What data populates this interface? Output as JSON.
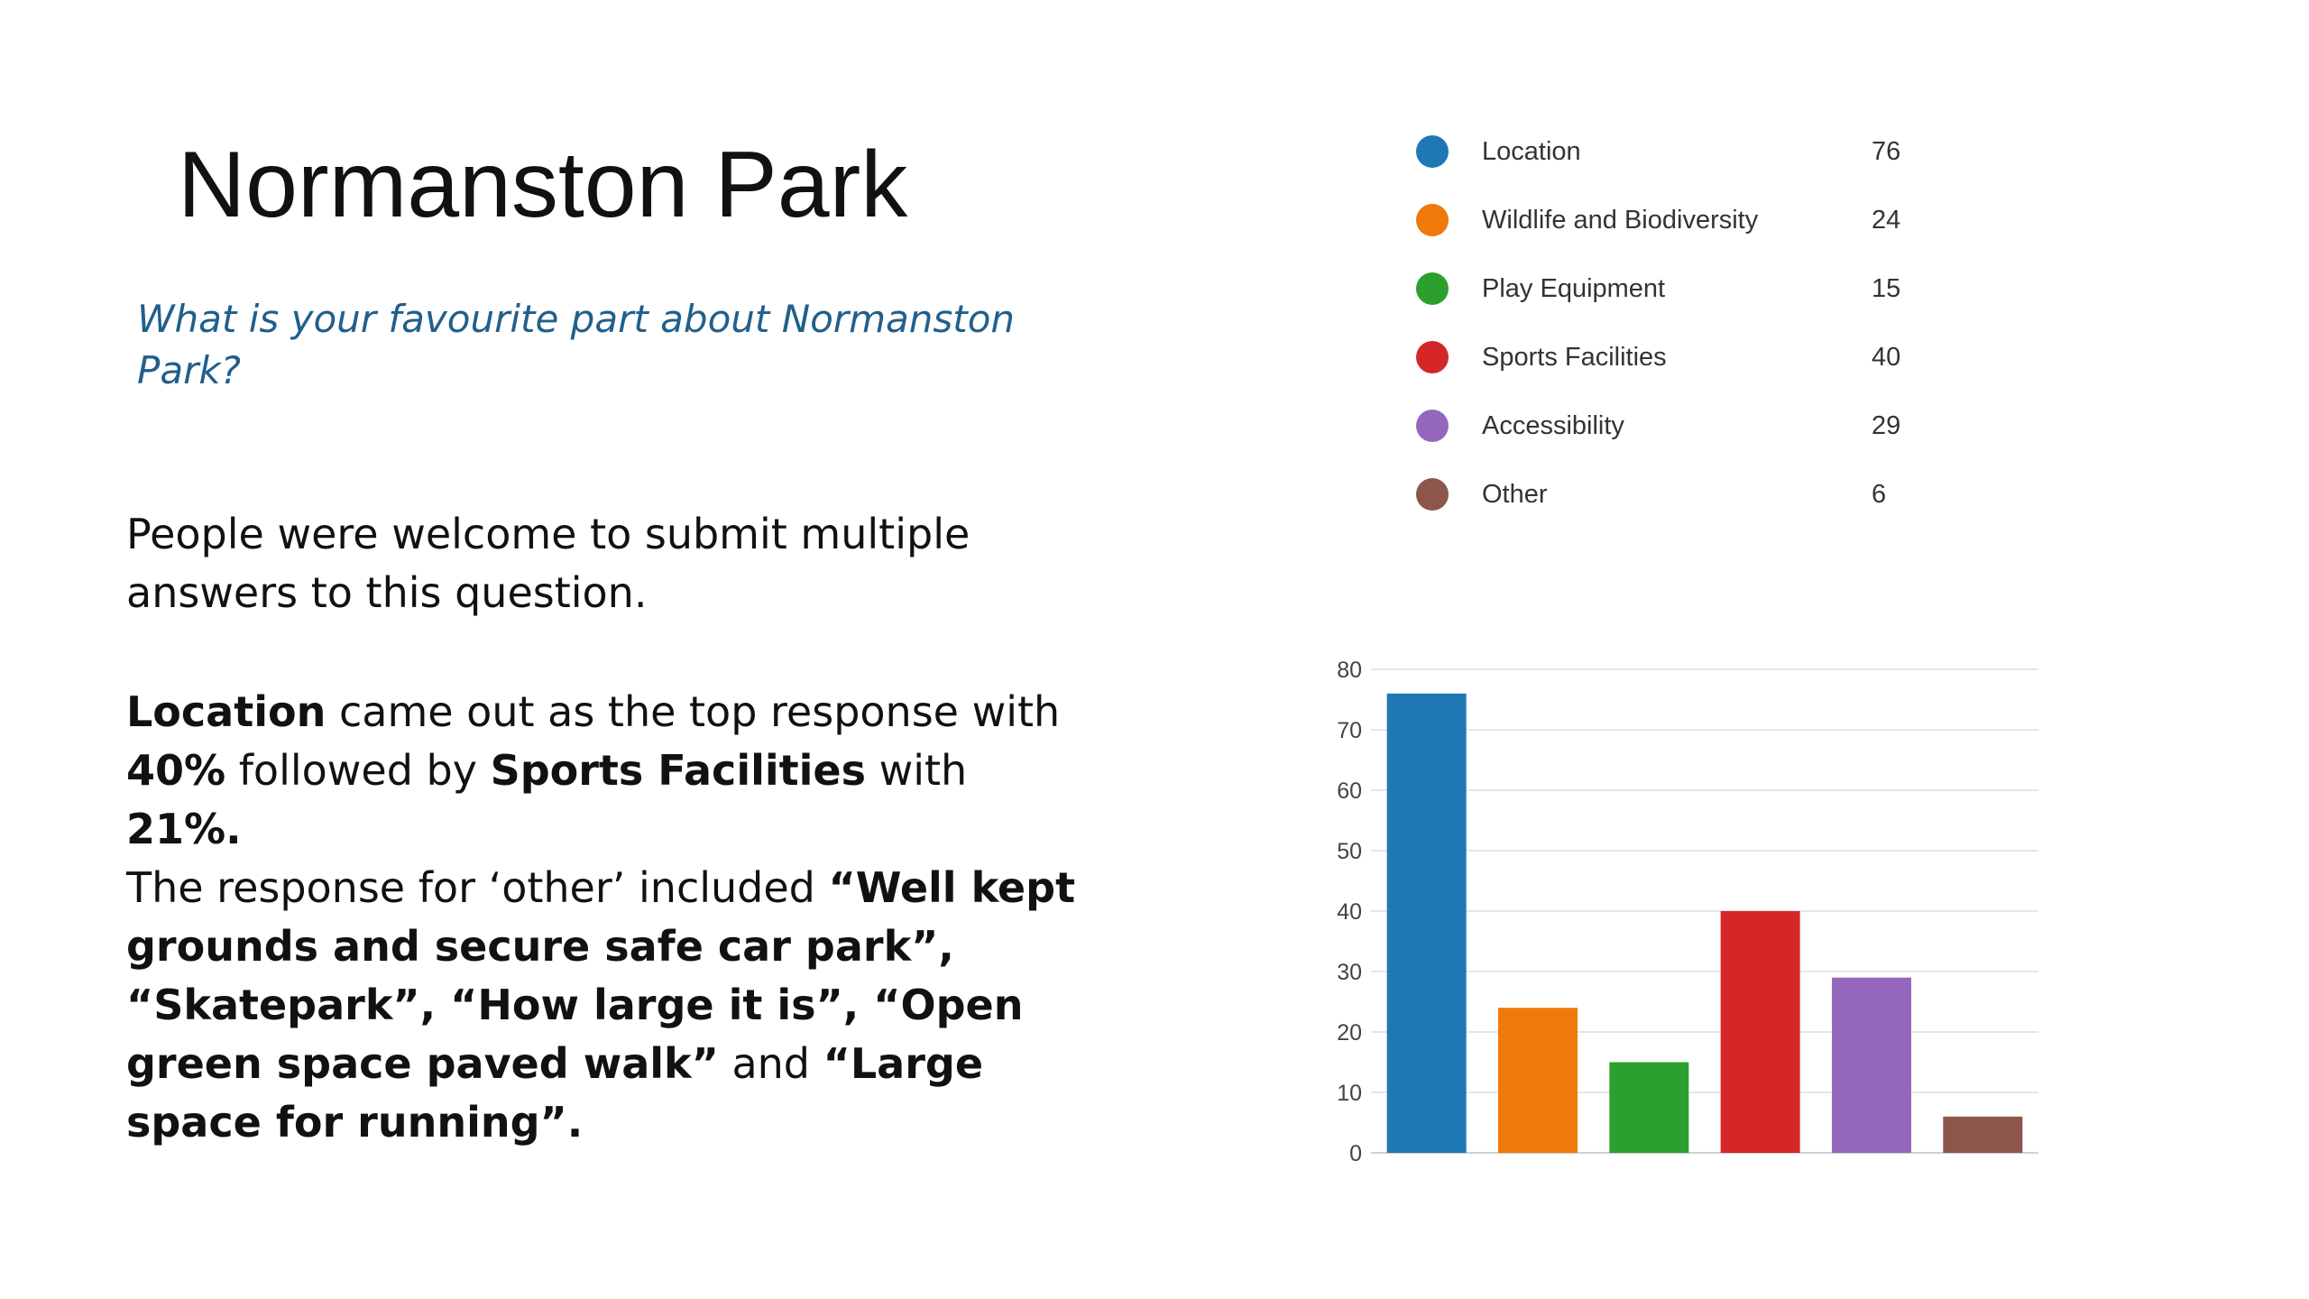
{
  "slide": {
    "title": "Normanston Park",
    "question": "What is your favourite part about Normanston Park?",
    "p1": "People were welcome to submit multiple answers to this question.",
    "p2": {
      "b1": "Location",
      "t1": " came out as the top response with ",
      "b2": "40%",
      "t2": " followed by ",
      "b3": "Sports Facilities",
      "t3": "  with ",
      "b4": "21%."
    },
    "p3": {
      "t1": "The response for ‘other’ included ",
      "b1": "“Well kept grounds and secure safe car park”, “Skatepark”, “How large it is”, “Open green space paved walk”",
      "t2": " and ",
      "b2": "“Large space for running”."
    }
  },
  "chart_data": {
    "type": "bar",
    "categories": [
      "Location",
      "Wildlife and Biodiversity",
      "Play Equipment",
      "Sports Facilities",
      "Accessibility",
      "Other"
    ],
    "values": [
      76,
      24,
      15,
      40,
      29,
      6
    ],
    "colors": [
      "#1f77b4",
      "#ef7a0c",
      "#2ca02c",
      "#d62728",
      "#9467bd",
      "#8c564b"
    ],
    "ylim": [
      0,
      80
    ],
    "yticks": [
      0,
      10,
      20,
      30,
      40,
      50,
      60,
      70,
      80
    ],
    "grid": true,
    "legend_placement": "top"
  }
}
